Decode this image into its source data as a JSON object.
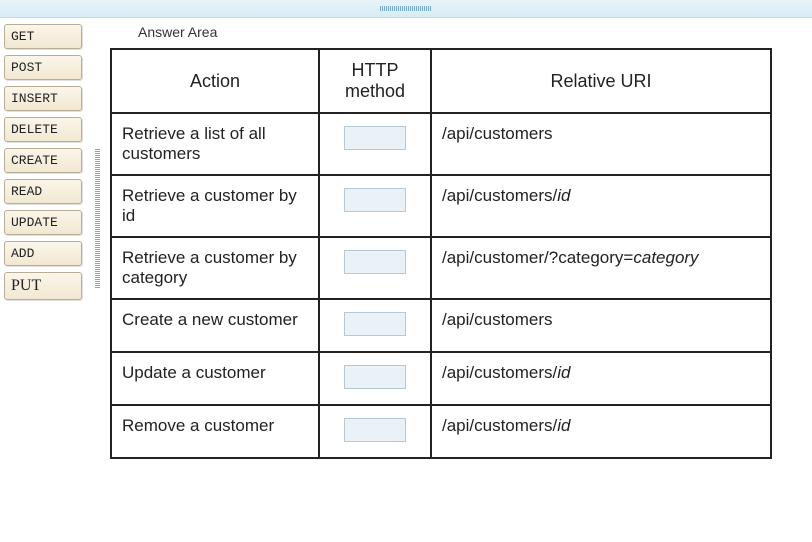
{
  "panel": {
    "title": "Answer Area"
  },
  "drag_items": [
    {
      "label": "GET",
      "alt": false
    },
    {
      "label": "POST",
      "alt": false
    },
    {
      "label": "INSERT",
      "alt": false
    },
    {
      "label": "DELETE",
      "alt": false
    },
    {
      "label": "CREATE",
      "alt": false
    },
    {
      "label": "READ",
      "alt": false
    },
    {
      "label": "UPDATE",
      "alt": false
    },
    {
      "label": "ADD",
      "alt": false
    },
    {
      "label": "PUT",
      "alt": true
    }
  ],
  "table": {
    "headers": {
      "action": "Action",
      "method": "HTTP method",
      "uri": "Relative URI"
    },
    "rows": [
      {
        "action": "Retrieve a list of all customers",
        "uri_parts": [
          [
            "/api/customers",
            false
          ]
        ]
      },
      {
        "action": "Retrieve a customer by id",
        "uri_parts": [
          [
            "/api/customers/",
            false
          ],
          [
            "id",
            true
          ]
        ]
      },
      {
        "action": "Retrieve a customer by category",
        "uri_parts": [
          [
            "/api/customer/?category=",
            false
          ],
          [
            "category",
            true
          ]
        ]
      },
      {
        "action": "Create a new customer",
        "uri_parts": [
          [
            "/api/customers",
            false
          ]
        ]
      },
      {
        "action": "Update a customer",
        "uri_parts": [
          [
            "/api/customers/",
            false
          ],
          [
            "id",
            true
          ]
        ]
      },
      {
        "action": "Remove a customer",
        "uri_parts": [
          [
            "/api/customers/",
            false
          ],
          [
            "id",
            true
          ]
        ]
      }
    ]
  },
  "colors": {
    "border": "#222222",
    "drop_bg": "#eaf2f8",
    "drop_border": "#b6c8d6",
    "button_bg_top": "#fbf6ea",
    "button_bg_bottom": "#f2e8d2",
    "button_border": "#b8ae95"
  }
}
